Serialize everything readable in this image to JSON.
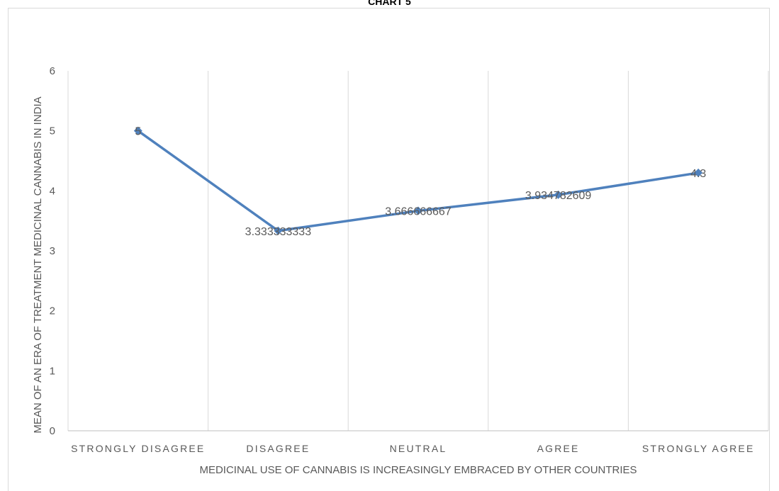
{
  "chart_data": {
    "type": "line",
    "title": "CHART 5",
    "xlabel": "MEDICINAL USE OF CANNABIS IS INCREASINGLY EMBRACED BY OTHER COUNTRIES",
    "ylabel": "MEAN OF AN ERA OF TREATMENT MEDICINAL CANNABIS IN INDIA",
    "categories": [
      "STRONGLY DISAGREE",
      "DISAGREE",
      "NEUTRAL",
      "AGREE",
      "STRONGLY AGREE"
    ],
    "series": [
      {
        "values": [
          5,
          3.333333333,
          3.666666667,
          3.934782609,
          4.3
        ],
        "labels": [
          "5",
          "3.333333333",
          "3.666666667",
          "3.934782609",
          "4.3"
        ]
      }
    ],
    "ylim": [
      0,
      6
    ],
    "yticks": [
      "0",
      "1",
      "2",
      "3",
      "4",
      "5",
      "6"
    ],
    "grid": "vertical",
    "line_color": "#4f81bd"
  }
}
